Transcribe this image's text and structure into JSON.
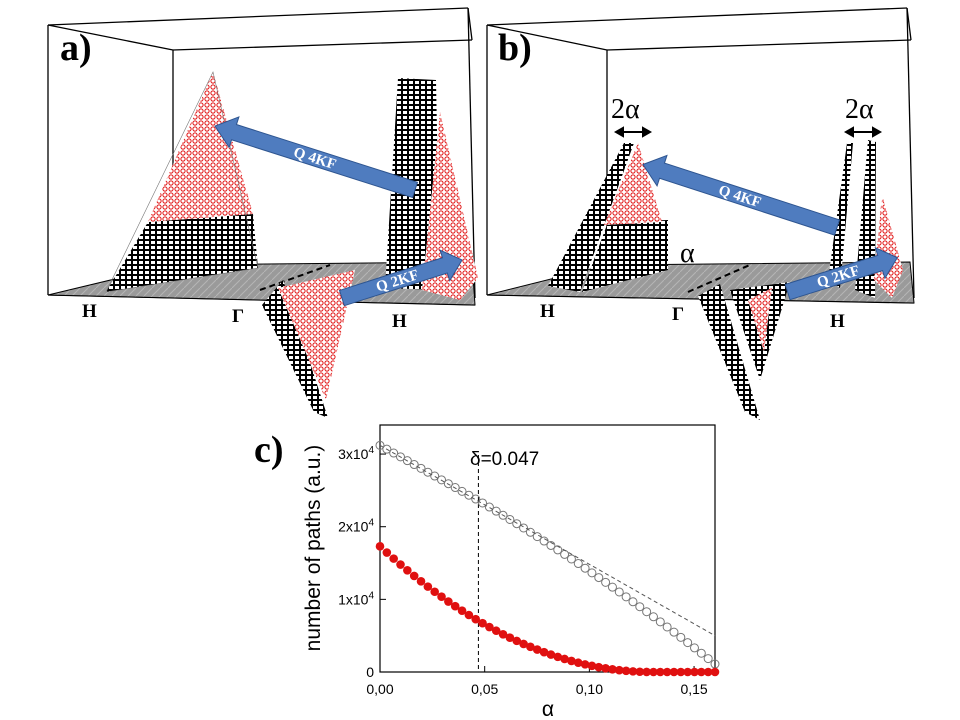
{
  "panel_a": {
    "label": "a)",
    "arrow_4kf": "Q 4KF",
    "arrow_2kf": "Q 2KF",
    "h_left": "H",
    "gamma": "Γ",
    "h_right": "H"
  },
  "panel_b": {
    "label": "b)",
    "arrow_4kf": "Q 4KF",
    "arrow_2kf": "Q 2KF",
    "two_alpha_left": "2α",
    "two_alpha_right": "2α",
    "alpha": "α",
    "h_left": "H",
    "gamma": "Γ",
    "h_right": "H"
  },
  "panel_c": {
    "label": "c)"
  },
  "colors": {
    "red": "#e01010",
    "arrow_blue": "#4f7cbf",
    "open_marker": "#777777",
    "floor_gray": "#9a9a9a"
  },
  "chart_data": {
    "type": "scatter",
    "title": "",
    "xlabel": "α",
    "ylabel": "number of paths (a.u.)",
    "xlim": [
      0,
      0.16
    ],
    "ylim": [
      0,
      34000
    ],
    "x_ticks": [
      0,
      0.05,
      0.1,
      0.15
    ],
    "x_tick_labels": [
      "0,00",
      "0,05",
      "0,10",
      "0,15"
    ],
    "y_ticks": [
      0,
      10000,
      20000,
      30000
    ],
    "y_tick_labels": [
      {
        "base": "0",
        "exp": ""
      },
      {
        "base": "1x10",
        "exp": "4"
      },
      {
        "base": "2x10",
        "exp": "4"
      },
      {
        "base": "3x10",
        "exp": "4"
      }
    ],
    "annotation": {
      "text": "δ=0.047",
      "x": 0.047
    },
    "series": [
      {
        "name": "open circles",
        "style": "open",
        "n": 50,
        "x_start": 0,
        "x_end": 0.16,
        "y0": 31200,
        "model": "piecewise",
        "x_break": 0.047,
        "y_break": 23600,
        "y_end": 1100
      },
      {
        "name": "filled circles",
        "style": "filled",
        "n": 50,
        "x_start": 0,
        "x_end": 0.16,
        "y0": 17300,
        "model": "quadratic_to_zero",
        "x_zero": 0.13
      },
      {
        "name": "dashed linear",
        "style": "dashed",
        "x": [
          0,
          0.16
        ],
        "y": [
          31200,
          5000
        ]
      }
    ]
  }
}
